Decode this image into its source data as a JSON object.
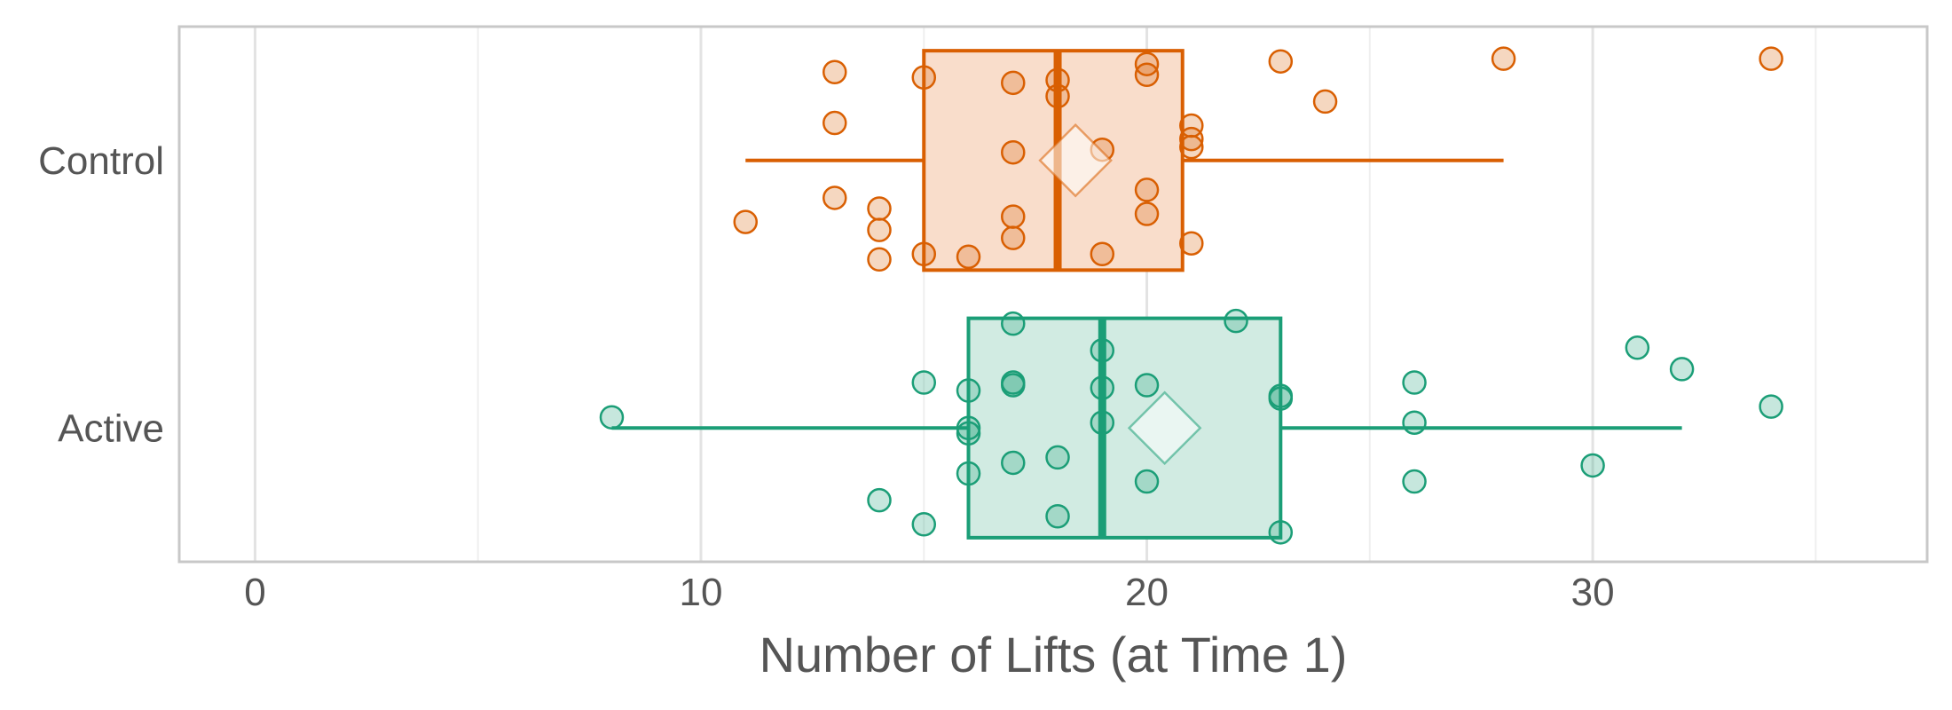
{
  "chart_data": {
    "type": "boxplot",
    "orientation": "horizontal",
    "xlabel": "Number of Lifts (at Time 1)",
    "xlim": [
      -1.7,
      37.5
    ],
    "x_ticks": [
      0,
      10,
      20,
      30
    ],
    "x_tick_labels": [
      "0",
      "10",
      "20",
      "30"
    ],
    "grid": true,
    "categories": [
      "Control",
      "Active"
    ],
    "series": [
      {
        "category": "Control",
        "color": "#D95F02",
        "fill": "#F9DDCB",
        "box": {
          "whisker_low": 11,
          "q1": 15,
          "median": 18,
          "q3": 20.8,
          "whisker_high": 28
        },
        "mean": 18.4,
        "points": [
          {
            "x": 13,
            "j": 0.33
          },
          {
            "x": 15,
            "j": 0.31
          },
          {
            "x": 17,
            "j": 0.29
          },
          {
            "x": 18,
            "j": 0.3
          },
          {
            "x": 20,
            "j": 0.36
          },
          {
            "x": 20,
            "j": 0.32
          },
          {
            "x": 23,
            "j": 0.37
          },
          {
            "x": 28,
            "j": 0.38
          },
          {
            "x": 34,
            "j": 0.38
          },
          {
            "x": 18,
            "j": 0.24
          },
          {
            "x": 24,
            "j": 0.22
          },
          {
            "x": 13,
            "j": 0.14
          },
          {
            "x": 21,
            "j": 0.13
          },
          {
            "x": 21,
            "j": 0.08
          },
          {
            "x": 21,
            "j": 0.05
          },
          {
            "x": 17,
            "j": 0.03
          },
          {
            "x": 19,
            "j": 0.04
          },
          {
            "x": 13,
            "j": -0.14
          },
          {
            "x": 20,
            "j": -0.11
          },
          {
            "x": 14,
            "j": -0.18
          },
          {
            "x": 17,
            "j": -0.21
          },
          {
            "x": 20,
            "j": -0.2
          },
          {
            "x": 11,
            "j": -0.23
          },
          {
            "x": 14,
            "j": -0.26
          },
          {
            "x": 17,
            "j": -0.29
          },
          {
            "x": 21,
            "j": -0.31
          },
          {
            "x": 15,
            "j": -0.35
          },
          {
            "x": 14,
            "j": -0.37
          },
          {
            "x": 16,
            "j": -0.36
          },
          {
            "x": 19,
            "j": -0.35
          }
        ]
      },
      {
        "category": "Active",
        "color": "#1B9E77",
        "fill": "#D1EBE2",
        "box": {
          "whisker_low": 8,
          "q1": 16,
          "median": 19,
          "q3": 23,
          "whisker_high": 32
        },
        "mean": 20.4,
        "points": [
          {
            "x": 17,
            "j": 0.39
          },
          {
            "x": 22,
            "j": 0.4
          },
          {
            "x": 31,
            "j": 0.3
          },
          {
            "x": 19,
            "j": 0.29
          },
          {
            "x": 32,
            "j": 0.22
          },
          {
            "x": 17,
            "j": 0.17
          },
          {
            "x": 17,
            "j": 0.16
          },
          {
            "x": 15,
            "j": 0.17
          },
          {
            "x": 16,
            "j": 0.14
          },
          {
            "x": 19,
            "j": 0.15
          },
          {
            "x": 20,
            "j": 0.16
          },
          {
            "x": 23,
            "j": 0.12
          },
          {
            "x": 23,
            "j": 0.11
          },
          {
            "x": 26,
            "j": 0.17
          },
          {
            "x": 34,
            "j": 0.08
          },
          {
            "x": 8,
            "j": 0.04
          },
          {
            "x": 19,
            "j": 0.02
          },
          {
            "x": 26,
            "j": 0.02
          },
          {
            "x": 16,
            "j": 0.0
          },
          {
            "x": 16,
            "j": -0.02
          },
          {
            "x": 18,
            "j": -0.11
          },
          {
            "x": 17,
            "j": -0.13
          },
          {
            "x": 30,
            "j": -0.14
          },
          {
            "x": 16,
            "j": -0.17
          },
          {
            "x": 20,
            "j": -0.2
          },
          {
            "x": 26,
            "j": -0.2
          },
          {
            "x": 14,
            "j": -0.27
          },
          {
            "x": 18,
            "j": -0.33
          },
          {
            "x": 15,
            "j": -0.36
          },
          {
            "x": 23,
            "j": -0.39
          }
        ]
      }
    ]
  }
}
